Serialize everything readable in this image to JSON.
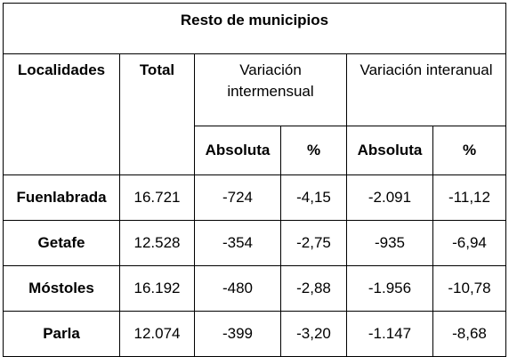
{
  "table": {
    "title": "Resto de municipios",
    "headers": {
      "localidades": "Localidades",
      "total": "Total",
      "intermensual": "Variación intermensual",
      "interanual": "Variación interanual",
      "absoluta_1": "Absoluta",
      "pct_1": "%",
      "absoluta_2": "Absoluta",
      "pct_2": "%"
    },
    "rows": [
      {
        "localidad": "Fuenlabrada",
        "total": "16.721",
        "im_abs": "-724",
        "im_pct": "-4,15",
        "ia_abs": "-2.091",
        "ia_pct": "-11,12"
      },
      {
        "localidad": "Getafe",
        "total": "12.528",
        "im_abs": "-354",
        "im_pct": "-2,75",
        "ia_abs": "-935",
        "ia_pct": "-6,94"
      },
      {
        "localidad": "Móstoles",
        "total": "16.192",
        "im_abs": "-480",
        "im_pct": "-2,88",
        "ia_abs": "-1.956",
        "ia_pct": "-10,78"
      },
      {
        "localidad": "Parla",
        "total": "12.074",
        "im_abs": "-399",
        "im_pct": "-3,20",
        "ia_abs": "-1.147",
        "ia_pct": "-8,68"
      }
    ]
  }
}
